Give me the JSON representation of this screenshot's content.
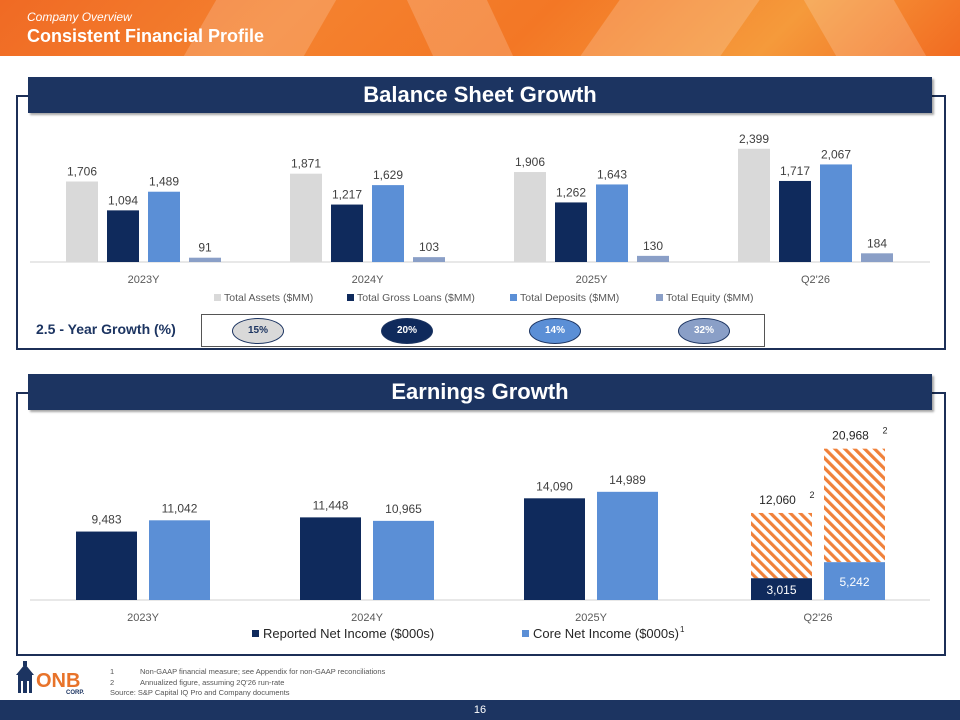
{
  "header": {
    "subtitle": "Company Overview",
    "title": "Consistent Financial Profile"
  },
  "balance": {
    "banner": "Balance Sheet Growth",
    "growth_label": "2.5 - Year Growth (%)",
    "growth": [
      {
        "label": "15%",
        "color": "#d9d9d9",
        "text": "#1c3461"
      },
      {
        "label": "20%",
        "color": "#0f2a5c",
        "text": "#ffffff"
      },
      {
        "label": "14%",
        "color": "#5b8fd6",
        "text": "#ffffff"
      },
      {
        "label": "32%",
        "color": "#8a9fc7",
        "text": "#ffffff"
      }
    ]
  },
  "earnings": {
    "banner": "Earnings Growth"
  },
  "chart_data": [
    {
      "type": "bar",
      "categories": [
        "2023Y",
        "2024Y",
        "2025Y",
        "Q2'26"
      ],
      "series": [
        {
          "name": "Total Assets ($MM)",
          "color": "#d9d9d9",
          "values": [
            1706,
            1871,
            1906,
            2399
          ],
          "labels": [
            "1,706",
            "1,871",
            "1,906",
            "2,399"
          ]
        },
        {
          "name": "Total Gross Loans ($MM)",
          "color": "#0f2a5c",
          "values": [
            1094,
            1217,
            1262,
            1717
          ],
          "labels": [
            "1,094",
            "1,217",
            "1,262",
            "1,717"
          ]
        },
        {
          "name": "Total Deposits ($MM)",
          "color": "#5b8fd6",
          "values": [
            1489,
            1629,
            1643,
            2067
          ],
          "labels": [
            "1,489",
            "1,629",
            "1,643",
            "2,067"
          ]
        },
        {
          "name": "Total Equity ($MM)",
          "color": "#8a9fc7",
          "values": [
            91,
            103,
            130,
            184
          ],
          "labels": [
            "91",
            "103",
            "130",
            "184"
          ]
        }
      ],
      "ylim": [
        0,
        2500
      ],
      "legend": "bottom"
    },
    {
      "type": "bar",
      "categories": [
        "2023Y",
        "2024Y",
        "2025Y",
        "Q2'26"
      ],
      "series": [
        {
          "name": "Reported Net Income ($000s)",
          "color": "#0f2a5c",
          "values": [
            9483,
            11448,
            14090,
            3015
          ],
          "labels": [
            "9,483",
            "11,448",
            "14,090",
            "3,015"
          ]
        },
        {
          "name": "Core Net Income ($000s)",
          "name_sup": "1",
          "color": "#5b8fd6",
          "values": [
            11042,
            10965,
            14989,
            5242
          ],
          "labels": [
            "11,042",
            "10,965",
            "14,989",
            "5,242"
          ]
        }
      ],
      "annualized": {
        "category": "Q2'26",
        "color": "#f0813a",
        "values": [
          12060,
          20968
        ],
        "labels": [
          "12,060",
          "20,968"
        ],
        "sup": "2"
      },
      "ylim": [
        0,
        23000
      ],
      "legend": "bottom"
    }
  ],
  "footnotes": [
    {
      "n": "1",
      "text": "Non-GAAP financial measure; see Appendix for non-GAAP reconciliations"
    },
    {
      "n": "2",
      "text": "Annualized figure, assuming 2Q'26 run-rate"
    },
    {
      "n": "",
      "text": "Source: S&P Capital IQ Pro and Company documents"
    }
  ],
  "logo": {
    "text": "ONB",
    "sub": "CORP."
  },
  "page_number": "16"
}
